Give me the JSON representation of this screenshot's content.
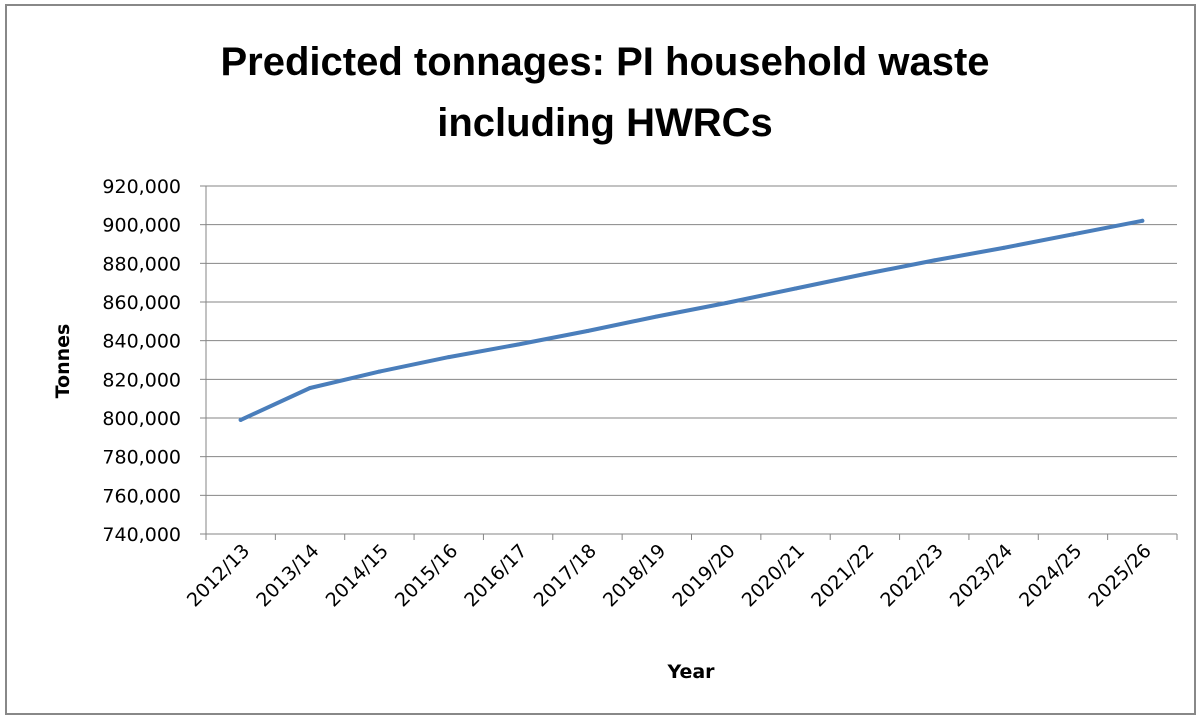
{
  "chart_data": {
    "type": "line",
    "title_lines": [
      "Predicted tonnages: PI household waste",
      "including HWRCs"
    ],
    "xlabel": "Year",
    "ylabel": "Tonnes",
    "categories": [
      "2012/13",
      "2013/14",
      "2014/15",
      "2015/16",
      "2016/17",
      "2017/18",
      "2018/19",
      "2019/20",
      "2020/21",
      "2021/22",
      "2022/23",
      "2023/24",
      "2024/25",
      "2025/26"
    ],
    "series": [
      {
        "values": [
          799000,
          815500,
          824000,
          831500,
          838000,
          845000,
          852500,
          859500,
          867000,
          874500,
          881500,
          888000,
          895000,
          902000
        ],
        "color": "#4a7ebb"
      }
    ],
    "ylim": [
      740000,
      920000
    ],
    "yticks": [
      740000,
      760000,
      780000,
      800000,
      820000,
      840000,
      860000,
      880000,
      900000,
      920000
    ],
    "ytick_labels": [
      "740,000",
      "760,000",
      "780,000",
      "800,000",
      "820,000",
      "840,000",
      "860,000",
      "880,000",
      "900,000",
      "920,000"
    ],
    "grid": "horizontal",
    "legend": "none"
  }
}
